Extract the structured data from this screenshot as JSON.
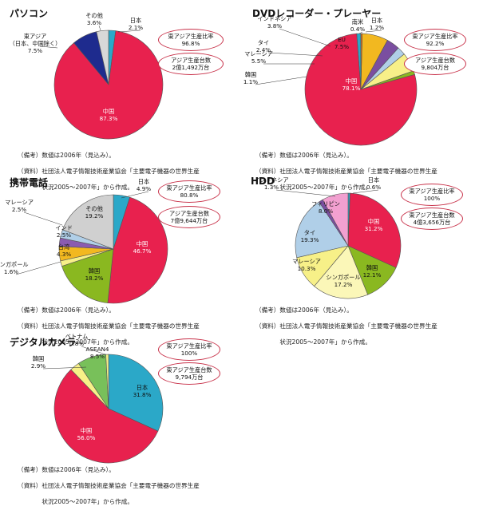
{
  "note_lines": {
    "biko": "（備考）数値は2006年（見込み）。",
    "shiryo": "（資料）社団法人電子情報技術産業協会「主要電子機器の世界生産",
    "shiryo2": "　　　　状況2005〜2007年」から作成。"
  },
  "chart_data": [
    {
      "type": "pie",
      "title": "パソコン",
      "slices": [
        {
          "label": "日本",
          "value": 2.1,
          "value_text": "2.1%",
          "color": "#2ba8c8"
        },
        {
          "label": "中国",
          "value": 87.3,
          "value_text": "87.3%",
          "color": "#e8214e"
        },
        {
          "label": "東アジア（日本、中国除く）",
          "value": 7.5,
          "value_text": "7.5%",
          "color": "#1e2b8e"
        },
        {
          "label": "その他",
          "value": 3.6,
          "value_text": "3.6%",
          "color": "#d8d8d8"
        }
      ],
      "ratio_label": "東アジア生産比率",
      "ratio_value": "96.8%",
      "amount_label": "アジア生産台数",
      "amount_value": "2億1,492万台"
    },
    {
      "type": "pie",
      "title": "DVDレコーダー・プレーヤー",
      "slices": [
        {
          "label": "日本",
          "value": 1.2,
          "value_text": "1.2%",
          "color": "#2ba8c8"
        },
        {
          "label": "中国",
          "value": 78.1,
          "value_text": "78.1%",
          "color": "#e8214e"
        },
        {
          "label": "韓国",
          "value": 1.1,
          "value_text": "1.1%",
          "color": "#8ab820"
        },
        {
          "label": "マレーシア",
          "value": 5.5,
          "value_text": "5.5%",
          "color": "#f7f088"
        },
        {
          "label": "タイ",
          "value": 2.4,
          "value_text": "2.4%",
          "color": "#b0cfe8"
        },
        {
          "label": "インドネシア",
          "value": 3.8,
          "value_text": "3.8%",
          "color": "#7a4ea0"
        },
        {
          "label": "EU",
          "value": 7.5,
          "value_text": "7.5%",
          "color": "#f2b820"
        },
        {
          "label": "南米",
          "value": 0.4,
          "value_text": "0.4%",
          "color": "#e86a10"
        }
      ],
      "ratio_label": "東アジア生産比率",
      "ratio_value": "92.2%",
      "amount_label": "アジア生産台数",
      "amount_value": "9,804万台"
    },
    {
      "type": "pie",
      "title": "携帯電話",
      "slices": [
        {
          "label": "日本",
          "value": 4.9,
          "value_text": "4.9%",
          "color": "#2ba8c8"
        },
        {
          "label": "中国",
          "value": 46.7,
          "value_text": "46.7%",
          "color": "#e8214e"
        },
        {
          "label": "韓国",
          "value": 18.2,
          "value_text": "18.2%",
          "color": "#8ab820"
        },
        {
          "label": "シンガポール",
          "value": 1.6,
          "value_text": "1.6%",
          "color": "#f7f088"
        },
        {
          "label": "台湾",
          "value": 4.3,
          "value_text": "4.3%",
          "color": "#f2b820"
        },
        {
          "label": "インド",
          "value": 2.5,
          "value_text": "2.5%",
          "color": "#8a5cb0"
        },
        {
          "label": "マレーシア",
          "value": 2.5,
          "value_text": "2.5%",
          "color": "#b0cfe8"
        },
        {
          "label": "その他",
          "value": 19.2,
          "value_text": "19.2%",
          "color": "#d0d0d0"
        }
      ],
      "ratio_label": "東アジア生産比率",
      "ratio_value": "80.8%",
      "amount_label": "アジア生産台数",
      "amount_value": "7億9,644万台"
    },
    {
      "type": "pie",
      "title": "HDD",
      "slices": [
        {
          "label": "日本",
          "value": 0.6,
          "value_text": "0.6%",
          "color": "#2ba8c8"
        },
        {
          "label": "中国",
          "value": 31.2,
          "value_text": "31.2%",
          "color": "#e8214e"
        },
        {
          "label": "韓国",
          "value": 12.1,
          "value_text": "12.1%",
          "color": "#8ab820"
        },
        {
          "label": "シンガポール",
          "value": 17.2,
          "value_text": "17.2%",
          "color": "#fbf7b8"
        },
        {
          "label": "マレーシア",
          "value": 10.3,
          "value_text": "10.3%",
          "color": "#f7f088"
        },
        {
          "label": "タイ",
          "value": 19.3,
          "value_text": "19.3%",
          "color": "#b0cfe8"
        },
        {
          "label": "インドネシア",
          "value": 1.3,
          "value_text": "1.3%",
          "color": "#7a4ea0"
        },
        {
          "label": "フィリピン",
          "value": 8.0,
          "value_text": "8.0%",
          "color": "#f2a0d0"
        }
      ],
      "ratio_label": "東アジア生産比率",
      "ratio_value": "100%",
      "amount_label": "東アジア生産台数",
      "amount_value": "4億3,656万台"
    },
    {
      "type": "pie",
      "title": "デジタルカメラ",
      "slices": [
        {
          "label": "日本",
          "value": 31.8,
          "value_text": "31.8%",
          "color": "#2ba8c8"
        },
        {
          "label": "中国",
          "value": 56.0,
          "value_text": "56.0%",
          "color": "#e8214e"
        },
        {
          "label": "韓国",
          "value": 2.9,
          "value_text": "2.9%",
          "color": "#f7f088"
        },
        {
          "label": "ASEAN4",
          "value": 8.5,
          "value_text": "8.5%",
          "color": "#78c05a"
        },
        {
          "label": "ベトナム",
          "value": 0.8,
          "value_text": "0.8%",
          "color": "#f7f088"
        }
      ],
      "ratio_label": "東アジア生産比率",
      "ratio_value": "100%",
      "amount_label": "東アジア生産台数",
      "amount_value": "9,794万台"
    }
  ]
}
